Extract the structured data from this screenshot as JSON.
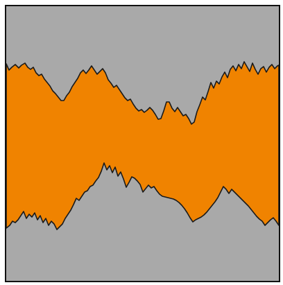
{
  "waveform": {
    "icon": "waveform-envelope-icon",
    "background_color": "#a9a9a9",
    "fill_color": "#f08300",
    "outline_color": "#1a1a1a",
    "border_color": "#111111"
  }
}
